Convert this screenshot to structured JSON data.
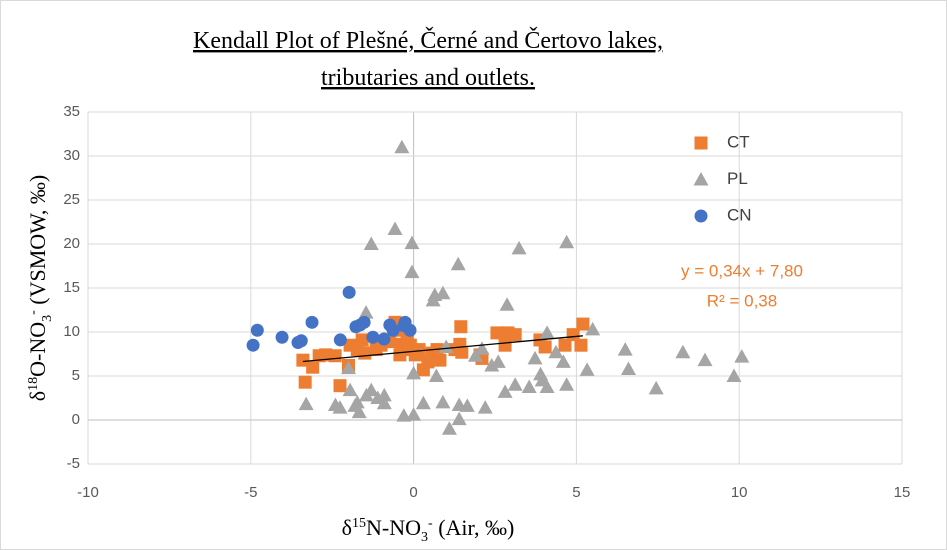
{
  "chart_data": {
    "type": "scatter",
    "title": [
      "Kendall Plot of Plešné, Černé and Čertovo lakes,",
      "tributaries and outlets."
    ],
    "xlabel": [
      {
        "text": "δ"
      },
      {
        "text": "15",
        "style": "sup"
      },
      {
        "text": "N-NO"
      },
      {
        "text": "3",
        "style": "sub"
      },
      {
        "text": "-",
        "style": "sup"
      },
      {
        "text": " (Air, ‰)"
      }
    ],
    "ylabel": [
      {
        "text": "δ"
      },
      {
        "text": "18",
        "style": "sup"
      },
      {
        "text": "O-NO"
      },
      {
        "text": "3",
        "style": "sub"
      },
      {
        "text": "-",
        "style": "sup"
      },
      {
        "text": " (VSMOW, ‰)"
      }
    ],
    "xlim": [
      -10,
      15
    ],
    "xticks": [
      -10,
      -5,
      0,
      5,
      10,
      15
    ],
    "ylim": [
      -5,
      35
    ],
    "yticks": [
      -5,
      0,
      5,
      10,
      15,
      20,
      25,
      30,
      35
    ],
    "grid": true,
    "legend": "top-right",
    "series": [
      {
        "name": "CT",
        "color": "#ED7D31",
        "marker": "square",
        "x": [
          -3.33,
          -3.4,
          -2.9,
          -2.41,
          -2.26,
          -2.0,
          -1.95,
          -1.73,
          -1.5,
          -1.15,
          -1.0,
          -0.73,
          -0.57,
          -0.48,
          -0.42,
          -0.36,
          -0.26,
          -0.2,
          -0.1,
          0.05,
          0.17,
          0.3,
          0.44,
          0.57,
          0.72,
          0.81,
          1.27,
          1.42,
          1.45,
          1.48,
          2.04,
          2.1,
          2.56,
          2.81,
          2.9,
          3.12,
          3.88,
          4.04,
          4.65,
          4.9,
          5.14,
          5.2,
          -3.1,
          -2.7,
          -1.58
        ],
        "values": [
          4.3,
          6.8,
          7.3,
          7.3,
          3.9,
          6.2,
          8.5,
          8.0,
          7.6,
          8.0,
          8.5,
          8.9,
          11.1,
          10.2,
          7.4,
          8.6,
          8.0,
          9.3,
          8.5,
          7.4,
          8.0,
          5.7,
          6.6,
          7.6,
          8.0,
          6.8,
          8.0,
          8.6,
          10.6,
          7.7,
          7.4,
          7.0,
          9.9,
          8.5,
          9.9,
          9.7,
          9.1,
          8.3,
          8.5,
          9.7,
          8.5,
          10.9,
          6.0,
          7.4,
          9.1
        ]
      },
      {
        "name": "PL",
        "color": "#A5A5A5",
        "marker": "triangle",
        "x": [
          -0.36,
          -0.57,
          -1.3,
          -0.05,
          -0.05,
          1.37,
          0.6,
          0.65,
          0.9,
          3.24,
          4.7,
          2.87,
          -1.46,
          5.5,
          4.1,
          4.37,
          3.73,
          4.6,
          6.5,
          8.27,
          8.95,
          10.08,
          9.84,
          7.45,
          6.6,
          5.33,
          4.7,
          4.1,
          3.55,
          3.12,
          3.9,
          3.95,
          2.81,
          2.6,
          2.4,
          2.1,
          1.9,
          1.0,
          0.7,
          2.2,
          1.65,
          1.4,
          1.1,
          1.4,
          0.9,
          0.3,
          -0.3,
          0.0,
          0.0,
          -0.9,
          -0.9,
          -1.1,
          -1.3,
          -1.45,
          -1.73,
          -1.67,
          -1.95,
          -1.8,
          -2.26,
          -2.4,
          -3.3,
          -2.0
        ],
        "values": [
          31,
          21.7,
          20,
          20.1,
          16.8,
          17.7,
          13.6,
          14.2,
          14.4,
          19.5,
          20.2,
          13.1,
          12.2,
          10.3,
          9.9,
          7.7,
          7.0,
          6.6,
          8.0,
          7.7,
          6.8,
          7.2,
          5.0,
          3.6,
          5.8,
          5.7,
          4.0,
          3.75,
          3.75,
          4.0,
          5.2,
          4.5,
          3.2,
          6.6,
          6.2,
          8.1,
          7.3,
          8.3,
          5.0,
          1.4,
          1.6,
          1.7,
          -1.0,
          0.1,
          2.0,
          1.9,
          0.5,
          0.6,
          5.3,
          2.8,
          1.9,
          2.5,
          3.4,
          2.8,
          2.0,
          0.9,
          3.4,
          1.6,
          1.4,
          1.7,
          1.8,
          5.9
        ]
      },
      {
        "name": "CN",
        "color": "#4472C4",
        "marker": "circle",
        "x": [
          -4.93,
          -4.8,
          -4.04,
          -3.55,
          -3.45,
          -3.12,
          -2.25,
          -1.98,
          -1.77,
          -1.52,
          -1.64,
          -1.25,
          -0.91,
          -0.73,
          -0.63,
          -0.26,
          -0.11,
          -0.3
        ],
        "values": [
          8.5,
          10.2,
          9.4,
          8.8,
          9.0,
          11.1,
          9.1,
          14.5,
          10.6,
          11.1,
          10.8,
          9.4,
          9.2,
          10.8,
          10.2,
          11.1,
          10.2,
          10.7
        ]
      }
    ],
    "trendline": {
      "slope": 0.34,
      "intercept": 7.8,
      "x_range": [
        -3.4,
        5.2
      ],
      "color": "#000000",
      "equation": "y = 0,34x + 7,80",
      "r2": "R² = 0,38",
      "label_color": "#ED7D31"
    }
  }
}
